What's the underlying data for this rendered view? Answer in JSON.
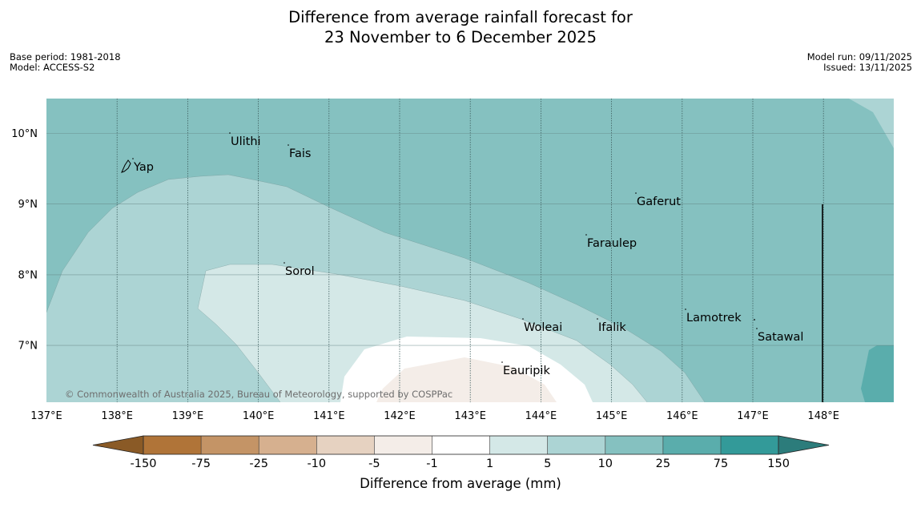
{
  "header": {
    "title_line1": "Difference from average rainfall forecast for",
    "title_line2": "23 November to 6 December 2025",
    "base_period": "Base period: 1981-2018",
    "model": "Model: ACCESS-S2",
    "model_run": "Model run: 09/11/2025",
    "issued": "Issued: 13/11/2025"
  },
  "map": {
    "copyright": "© Commonwealth of Australia 2025, Bureau of Meteorology, supported by COSPPac",
    "lat_labels": [
      "10°N",
      "9°N",
      "8°N",
      "7°N"
    ],
    "lon_labels": [
      "137°E",
      "138°E",
      "139°E",
      "140°E",
      "141°E",
      "142°E",
      "143°E",
      "144°E",
      "145°E",
      "146°E",
      "147°E",
      "148°E"
    ],
    "places": [
      "Yap",
      "Ulithi",
      "Fais",
      "Sorol",
      "Gaferut",
      "Faraulep",
      "Woleai",
      "Ifalik",
      "Lamotrek",
      "Satawal",
      "Eauripik"
    ]
  },
  "colorbar": {
    "ticks": [
      "-150",
      "-75",
      "-25",
      "-10",
      "-5",
      "-1",
      "1",
      "5",
      "10",
      "25",
      "75",
      "150"
    ],
    "label": "Difference from average (mm)",
    "colors": [
      "#8a5a26",
      "#b07438",
      "#c49466",
      "#d6b08f",
      "#e6d2c1",
      "#f4ede8",
      "#ffffff",
      "#d4e8e7",
      "#acd4d4",
      "#85c1c0",
      "#5aadac",
      "#339a99",
      "#2c7c7b"
    ]
  }
}
